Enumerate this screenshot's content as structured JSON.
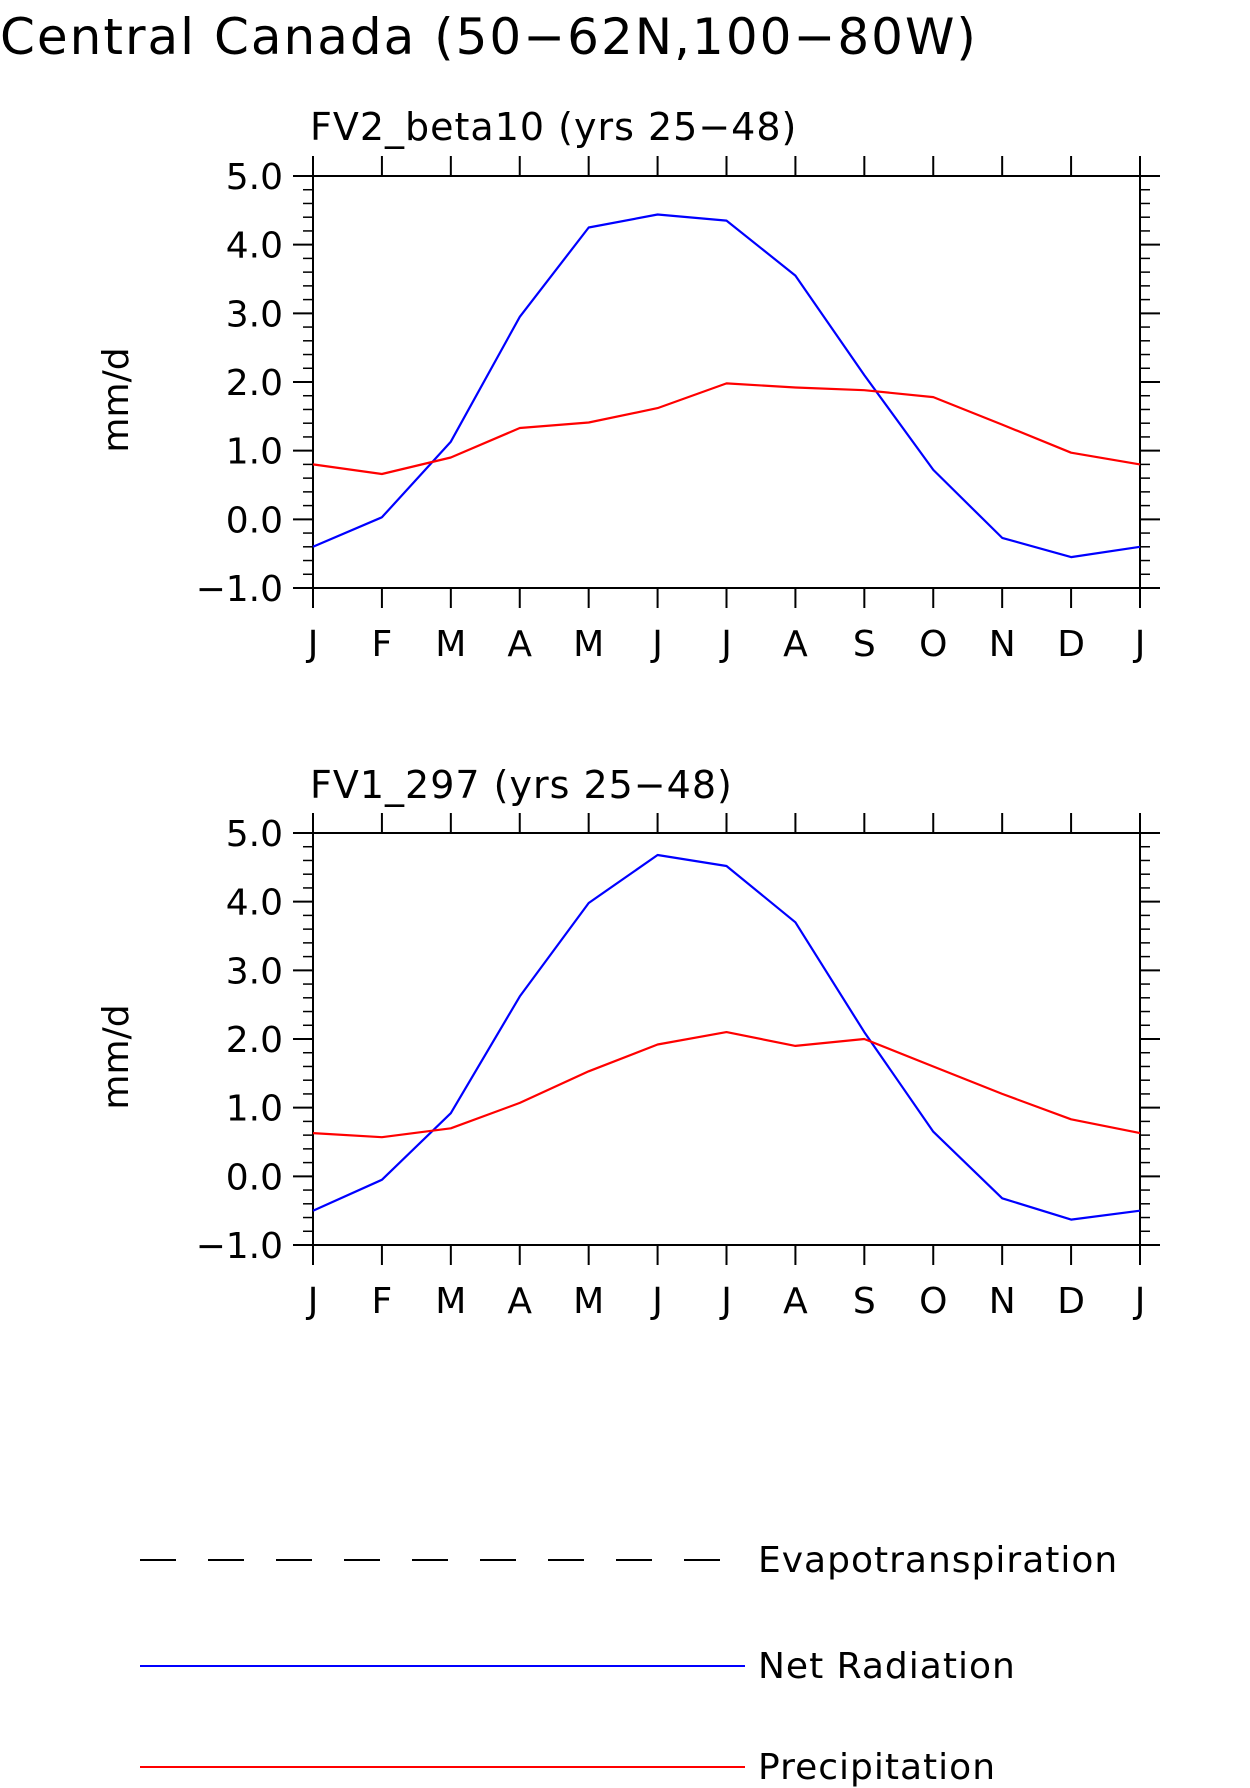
{
  "title": "Central Canada (50−62N,100−80W)",
  "chart_data": [
    {
      "type": "line",
      "title": "FV2_beta10 (yrs 25−48)",
      "ylabel": "mm/d",
      "categories": [
        "J",
        "F",
        "M",
        "A",
        "M",
        "J",
        "J",
        "A",
        "S",
        "O",
        "N",
        "D",
        "J"
      ],
      "ylim": [
        -1.0,
        5.0
      ],
      "yticks": [
        "5.0",
        "4.0",
        "3.0",
        "2.0",
        "1.0",
        "0.0",
        "−1.0"
      ],
      "series": [
        {
          "name": "Net Radiation",
          "color": "#0000ff",
          "values": [
            -0.4,
            0.03,
            1.13,
            2.95,
            4.25,
            4.44,
            4.35,
            3.55,
            2.1,
            0.72,
            -0.27,
            -0.55,
            -0.4
          ]
        },
        {
          "name": "Precipitation",
          "color": "#ff0000",
          "values": [
            0.8,
            0.66,
            0.9,
            1.33,
            1.41,
            1.62,
            1.98,
            1.92,
            1.88,
            1.78,
            1.38,
            0.97,
            0.8
          ]
        }
      ]
    },
    {
      "type": "line",
      "title": "FV1_297 (yrs 25−48)",
      "ylabel": "mm/d",
      "categories": [
        "J",
        "F",
        "M",
        "A",
        "M",
        "J",
        "J",
        "A",
        "S",
        "O",
        "N",
        "D",
        "J"
      ],
      "ylim": [
        -1.0,
        5.0
      ],
      "yticks": [
        "5.0",
        "4.0",
        "3.0",
        "2.0",
        "1.0",
        "0.0",
        "−1.0"
      ],
      "series": [
        {
          "name": "Net Radiation",
          "color": "#0000ff",
          "values": [
            -0.5,
            -0.05,
            0.92,
            2.62,
            3.98,
            4.68,
            4.52,
            3.7,
            2.1,
            0.65,
            -0.32,
            -0.63,
            -0.5
          ]
        },
        {
          "name": "Precipitation",
          "color": "#ff0000",
          "values": [
            0.63,
            0.57,
            0.7,
            1.07,
            1.53,
            1.92,
            2.1,
            1.9,
            2.0,
            1.6,
            1.2,
            0.83,
            0.63
          ]
        }
      ]
    }
  ],
  "legend": [
    {
      "label": "Evapotranspiration",
      "color": "#000000",
      "style": "dashed"
    },
    {
      "label": "Net Radiation",
      "color": "#0000ff",
      "style": "solid"
    },
    {
      "label": "Precipitation",
      "color": "#ff0000",
      "style": "solid"
    }
  ]
}
